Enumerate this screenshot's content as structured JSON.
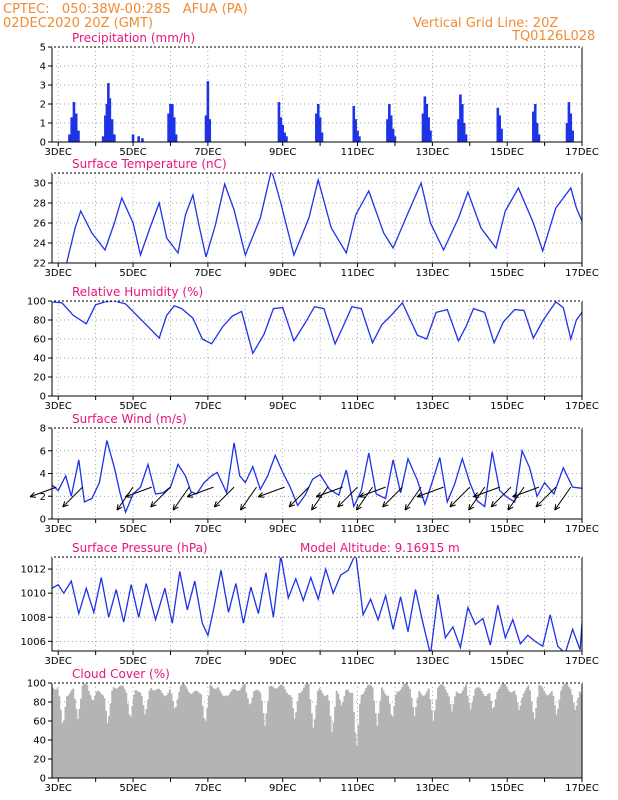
{
  "header": {
    "line1": "CPTEC:   050:38W-00:28S   AFUA (PA)",
    "line2": "02DEC2020 20Z (GMT)",
    "grid_note": "Vertical Grid Line: 20Z",
    "code": "TQ0126L028"
  },
  "x_ticks": [
    "3DEC",
    "5DEC",
    "7DEC",
    "9DEC",
    "11DEC",
    "13DEC",
    "15DEC",
    "17DEC"
  ],
  "colors": {
    "line": "#1e32e6",
    "title": "#e6147d",
    "header": "#f08c32",
    "cloud": "#b4b4b4"
  },
  "chart_data": [
    {
      "type": "bar",
      "title": "Precipitation (mm/h)",
      "ylim": [
        0,
        5
      ],
      "yticks": [
        "0",
        "1",
        "2",
        "3",
        "4",
        "5"
      ],
      "x_start": 2.8333,
      "x_end": 17.0,
      "bars": [
        [
          3.3,
          0.4
        ],
        [
          3.36,
          1.3
        ],
        [
          3.42,
          2.1
        ],
        [
          3.48,
          1.5
        ],
        [
          3.54,
          0.6
        ],
        [
          4.2,
          0.3
        ],
        [
          4.26,
          1.4
        ],
        [
          4.3,
          2.0
        ],
        [
          4.34,
          3.1
        ],
        [
          4.38,
          2.3
        ],
        [
          4.44,
          1.2
        ],
        [
          4.5,
          0.4
        ],
        [
          5.0,
          0.4
        ],
        [
          5.15,
          0.3
        ],
        [
          5.25,
          0.2
        ],
        [
          5.95,
          1.5
        ],
        [
          6.0,
          2.0
        ],
        [
          6.05,
          2.0
        ],
        [
          6.1,
          1.3
        ],
        [
          6.15,
          0.4
        ],
        [
          6.95,
          1.4
        ],
        [
          7.0,
          3.2
        ],
        [
          7.05,
          1.2
        ],
        [
          8.9,
          2.1
        ],
        [
          8.95,
          1.3
        ],
        [
          9.0,
          0.9
        ],
        [
          9.05,
          0.5
        ],
        [
          9.1,
          0.3
        ],
        [
          9.9,
          1.5
        ],
        [
          9.95,
          2.0
        ],
        [
          10.0,
          1.3
        ],
        [
          10.05,
          0.5
        ],
        [
          10.9,
          1.9
        ],
        [
          10.95,
          1.2
        ],
        [
          11.0,
          0.6
        ],
        [
          11.05,
          0.3
        ],
        [
          11.8,
          1.2
        ],
        [
          11.85,
          2.0
        ],
        [
          11.9,
          1.4
        ],
        [
          11.95,
          0.7
        ],
        [
          12.0,
          0.3
        ],
        [
          12.75,
          1.5
        ],
        [
          12.8,
          2.4
        ],
        [
          12.85,
          2.0
        ],
        [
          12.9,
          1.3
        ],
        [
          12.95,
          0.6
        ],
        [
          13.7,
          1.2
        ],
        [
          13.75,
          2.5
        ],
        [
          13.8,
          2.0
        ],
        [
          13.85,
          1.0
        ],
        [
          13.9,
          0.4
        ],
        [
          14.75,
          1.8
        ],
        [
          14.8,
          1.4
        ],
        [
          14.85,
          0.7
        ],
        [
          15.7,
          1.6
        ],
        [
          15.75,
          2.0
        ],
        [
          15.8,
          1.0
        ],
        [
          15.85,
          0.4
        ],
        [
          16.6,
          1.0
        ],
        [
          16.65,
          2.1
        ],
        [
          16.7,
          1.5
        ],
        [
          16.75,
          0.6
        ]
      ]
    },
    {
      "type": "line",
      "title": "Surface Temperature (nC)",
      "ylim": [
        22,
        31
      ],
      "yticks": [
        "22",
        "24",
        "26",
        "28",
        "30",
        "32"
      ],
      "x_start": 2.8333,
      "x_end": 17.0,
      "series": [
        {
          "x": [
            2.8333,
            3.0,
            3.2,
            3.45,
            3.6,
            3.9,
            4.25,
            4.5,
            4.7,
            5.0,
            5.2,
            5.45,
            5.7,
            5.9,
            6.2,
            6.4,
            6.6,
            6.75,
            6.95,
            7.2,
            7.45,
            7.7,
            8.0,
            8.4,
            8.7,
            8.95,
            9.3,
            9.7,
            9.95,
            10.3,
            10.7,
            10.95,
            11.3,
            11.7,
            11.95,
            12.35,
            12.7,
            12.95,
            13.3,
            13.7,
            13.95,
            14.3,
            14.7,
            14.95,
            15.3,
            15.7,
            15.95,
            16.3,
            16.7,
            16.85,
            17.0
          ],
          "y": [
            21.8,
            21.6,
            21.6,
            25.5,
            27.2,
            25.0,
            23.3,
            26.0,
            28.5,
            26.0,
            22.8,
            25.5,
            28.0,
            24.5,
            23.0,
            26.8,
            28.8,
            26.0,
            22.6,
            25.8,
            29.9,
            27.3,
            22.8,
            26.5,
            31.3,
            28.0,
            22.8,
            26.5,
            30.3,
            25.5,
            23.0,
            26.8,
            29.2,
            25.0,
            23.5,
            27.0,
            30.0,
            26.0,
            23.3,
            26.5,
            29.1,
            25.5,
            23.5,
            27.2,
            29.5,
            26.0,
            23.2,
            27.5,
            29.5,
            27.5,
            26.2
          ]
        }
      ]
    },
    {
      "type": "line",
      "title": "Relative Humidity (%)",
      "ylim": [
        0,
        100
      ],
      "yticks": [
        "0",
        "20",
        "40",
        "60",
        "80",
        "100"
      ],
      "x_start": 2.8333,
      "x_end": 17.0,
      "series": [
        {
          "x": [
            2.8333,
            3.1,
            3.4,
            3.75,
            4.0,
            4.25,
            4.5,
            4.8,
            5.1,
            5.4,
            5.7,
            5.9,
            6.1,
            6.3,
            6.6,
            6.85,
            7.1,
            7.4,
            7.65,
            7.9,
            8.2,
            8.5,
            8.75,
            9.0,
            9.3,
            9.6,
            9.85,
            10.1,
            10.4,
            10.6,
            10.85,
            11.1,
            11.4,
            11.65,
            11.9,
            12.2,
            12.6,
            12.85,
            13.1,
            13.4,
            13.7,
            13.9,
            14.1,
            14.4,
            14.65,
            14.9,
            15.2,
            15.45,
            15.7,
            15.95,
            16.3,
            16.5,
            16.7,
            16.85,
            17.0
          ],
          "y": [
            99,
            98,
            85,
            76,
            96,
            99,
            100,
            97,
            85,
            73,
            61,
            85,
            95,
            92,
            82,
            60,
            55,
            73,
            84,
            89,
            45,
            65,
            92,
            93,
            58,
            77,
            94,
            92,
            55,
            72,
            94,
            92,
            56,
            75,
            85,
            98,
            64,
            60,
            88,
            91,
            58,
            73,
            92,
            88,
            56,
            78,
            91,
            90,
            61,
            79,
            99,
            93,
            60,
            80,
            88
          ]
        }
      ]
    },
    {
      "type": "line",
      "title": "Surface Wind (m/s)",
      "ylim": [
        0,
        8
      ],
      "yticks": [
        "0",
        "2",
        "4",
        "6",
        "8"
      ],
      "x_start": 2.8333,
      "x_end": 17.0,
      "series": [
        {
          "x": [
            2.8333,
            3.0,
            3.2,
            3.35,
            3.55,
            3.7,
            3.9,
            4.1,
            4.3,
            4.5,
            4.65,
            4.8,
            5.0,
            5.2,
            5.4,
            5.6,
            5.8,
            6.0,
            6.2,
            6.4,
            6.55,
            6.7,
            6.9,
            7.1,
            7.25,
            7.5,
            7.7,
            7.85,
            8.0,
            8.2,
            8.4,
            8.6,
            8.8,
            9.0,
            9.2,
            9.4,
            9.6,
            9.8,
            10.0,
            10.25,
            10.5,
            10.7,
            10.9,
            11.1,
            11.3,
            11.5,
            11.75,
            11.95,
            12.15,
            12.35,
            12.6,
            12.8,
            13.0,
            13.2,
            13.4,
            13.6,
            13.8,
            14.0,
            14.2,
            14.4,
            14.6,
            14.8,
            15.0,
            15.2,
            15.4,
            15.6,
            15.8,
            16.0,
            16.25,
            16.5,
            16.75,
            17.0
          ],
          "y": [
            3.0,
            2.5,
            3.8,
            2.0,
            5.2,
            1.5,
            1.8,
            3.2,
            6.9,
            4.5,
            2.3,
            0.6,
            2.2,
            2.8,
            4.8,
            2.2,
            2.3,
            2.8,
            4.8,
            3.8,
            2.4,
            2.2,
            3.2,
            3.8,
            4.1,
            2.3,
            6.7,
            3.8,
            3.2,
            4.6,
            2.6,
            3.8,
            5.6,
            4.1,
            2.8,
            1.2,
            2.1,
            3.5,
            3.9,
            2.6,
            2.1,
            4.3,
            1.1,
            2.5,
            5.8,
            2.2,
            1.8,
            5.2,
            2.3,
            5.3,
            3.4,
            1.3,
            3.3,
            5.4,
            1.5,
            3.1,
            5.3,
            3.2,
            1.6,
            1.1,
            5.9,
            2.5,
            1.9,
            1.5,
            6.0,
            4.5,
            2.0,
            3.2,
            2.2,
            4.5,
            2.8,
            2.7
          ]
        }
      ],
      "arrows_x": [
        2.95,
        3.65,
        5.0,
        5.5,
        6.0,
        6.5,
        7.15,
        7.7,
        8.3,
        9.05,
        9.7,
        10.2,
        10.6,
        11.0,
        11.4,
        11.75,
        12.2,
        12.7,
        13.3,
        14.0,
        14.4,
        14.8,
        15.1,
        15.45,
        15.85,
        16.3,
        16.7
      ]
    },
    {
      "type": "line",
      "title": "Surface Pressure (hPa)",
      "annotation": "Model Altitude: 9.16915 m",
      "ylim": [
        1005.2,
        1013
      ],
      "yticks": [
        "1006",
        "1008",
        "1010",
        "1012"
      ],
      "x_start": 2.8333,
      "x_end": 17.0,
      "series": [
        {
          "x": [
            2.8333,
            3.0,
            3.15,
            3.35,
            3.55,
            3.75,
            3.95,
            4.15,
            4.35,
            4.55,
            4.75,
            4.95,
            5.15,
            5.35,
            5.6,
            5.85,
            6.05,
            6.25,
            6.45,
            6.65,
            6.85,
            7.0,
            7.15,
            7.35,
            7.55,
            7.75,
            7.95,
            8.15,
            8.35,
            8.55,
            8.75,
            8.95,
            9.15,
            9.35,
            9.55,
            9.75,
            9.95,
            10.15,
            10.35,
            10.55,
            10.75,
            10.95,
            11.15,
            11.35,
            11.55,
            11.75,
            11.95,
            12.15,
            12.35,
            12.55,
            12.75,
            12.95,
            13.15,
            13.35,
            13.55,
            13.75,
            13.95,
            14.15,
            14.35,
            14.55,
            14.75,
            14.95,
            15.15,
            15.35,
            15.55,
            15.75,
            15.95,
            16.15,
            16.35,
            16.55,
            16.75,
            16.95,
            17.0
          ],
          "y": [
            1010.4,
            1010.7,
            1010.0,
            1011.0,
            1008.3,
            1010.4,
            1008.4,
            1011.3,
            1008.0,
            1010.3,
            1007.6,
            1010.7,
            1008.0,
            1010.8,
            1007.8,
            1010.4,
            1007.5,
            1011.8,
            1008.6,
            1011.0,
            1007.5,
            1006.5,
            1008.6,
            1011.9,
            1008.4,
            1010.8,
            1007.5,
            1010.5,
            1008.3,
            1011.7,
            1008.0,
            1013.1,
            1009.6,
            1011.2,
            1009.4,
            1011.3,
            1009.5,
            1012.0,
            1010.0,
            1011.5,
            1011.9,
            1013.3,
            1008.2,
            1009.5,
            1007.8,
            1009.8,
            1007.0,
            1009.7,
            1006.8,
            1010.3,
            1007.5,
            1004.9,
            1009.9,
            1006.3,
            1007.2,
            1005.5,
            1008.8,
            1007.4,
            1007.9,
            1005.7,
            1009.0,
            1006.3,
            1007.8,
            1005.8,
            1006.5,
            1006.0,
            1005.6,
            1008.2,
            1005.6,
            1005.0,
            1007.0,
            1005.3,
            1007.5
          ]
        }
      ]
    },
    {
      "type": "bar",
      "title": "Cloud Cover (%)",
      "ylim": [
        0,
        100
      ],
      "yticks": [
        "0",
        "20",
        "40",
        "60",
        "80",
        "100"
      ],
      "x_start": 2.8333,
      "x_end": 17.0,
      "step": 0.0416667,
      "dips": [
        [
          3.1,
          52
        ],
        [
          3.5,
          62
        ],
        [
          3.9,
          80
        ],
        [
          4.3,
          55
        ],
        [
          4.9,
          60
        ],
        [
          5.3,
          65
        ],
        [
          6.1,
          70
        ],
        [
          6.9,
          55
        ],
        [
          7.4,
          85
        ],
        [
          8.1,
          75
        ],
        [
          8.5,
          55
        ],
        [
          9.3,
          60
        ],
        [
          9.8,
          50
        ],
        [
          10.3,
          45
        ],
        [
          10.55,
          75
        ],
        [
          10.95,
          30
        ],
        [
          11.5,
          55
        ],
        [
          11.9,
          60
        ],
        [
          12.5,
          65
        ],
        [
          13.0,
          60
        ],
        [
          13.5,
          70
        ],
        [
          14.0,
          72
        ],
        [
          14.6,
          70
        ],
        [
          15.3,
          70
        ],
        [
          15.7,
          60
        ],
        [
          16.3,
          65
        ],
        [
          16.8,
          70
        ]
      ]
    }
  ]
}
